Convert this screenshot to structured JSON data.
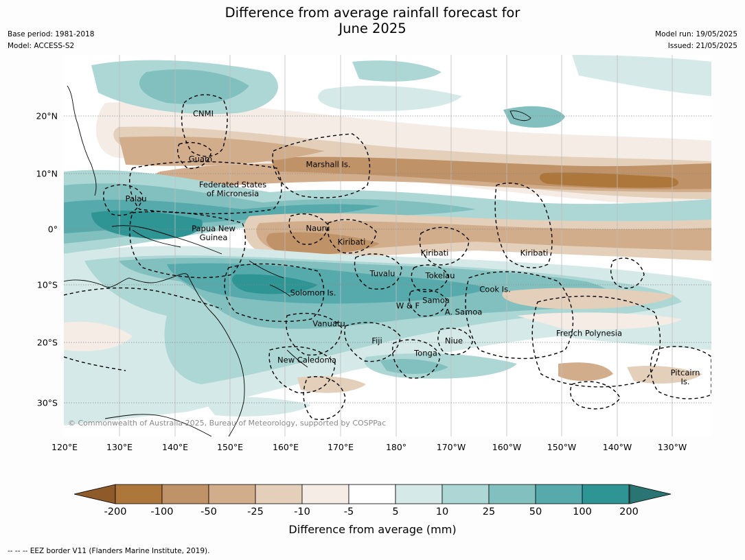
{
  "title_line1": "Difference from average rainfall forecast for",
  "title_line2": "June 2025",
  "meta": {
    "base_period": "Base period: 1981-2018",
    "model": "Model: ACCESS-S2",
    "model_run": "Model run: 19/05/2025",
    "issued": "Issued: 21/05/2025"
  },
  "lat_labels": [
    "20°N",
    "10°N",
    "0°",
    "10°S",
    "20°S",
    "30°S"
  ],
  "lon_labels": [
    "120°E",
    "130°E",
    "140°E",
    "150°E",
    "160°E",
    "170°E",
    "180°",
    "170°W",
    "160°W",
    "150°W",
    "140°W",
    "130°W"
  ],
  "regions": {
    "cnmi": "CNMI",
    "guam": "Guam",
    "marshall": "Marshall Is.",
    "fsm_line1": "Federated States",
    "fsm_line2": "of Micronesia",
    "palau": "Palau",
    "png_line1": "Papua New",
    "png_line2": "Guinea",
    "nauru": "Nauru",
    "kiribati_west": "Kiribati",
    "kiribati_central": "Kiribati",
    "kiribati_east": "Kiribati",
    "tuvalu": "Tuvalu",
    "tokelau": "Tokelau",
    "cook": "Cook Is.",
    "solomon": "Solomon Is.",
    "samoa": "Samoa",
    "wf": "W & F",
    "am_samoa": "A. Samoa",
    "vanuatu": "Vanuatu",
    "fiji": "Fiji",
    "niue": "Niue",
    "tonga": "Tonga",
    "french_polynesia": "French Polynesia",
    "new_caledonia": "New Caledonia",
    "pitcairn_line1": "Pitcairn",
    "pitcairn_line2": "Is."
  },
  "copyright": "© Commonwealth of Australia 2025, Bureau of Meteorology, supported by COSPPac",
  "colorbar": {
    "ticks": [
      "-200",
      "-100",
      "-50",
      "-25",
      "-10",
      "-5",
      "5",
      "10",
      "25",
      "50",
      "100",
      "200"
    ],
    "colors": {
      "below_min": "#8e5a2a",
      "bins": [
        "#ad773c",
        "#c09267",
        "#d2ad8c",
        "#e3cfba",
        "#f4ece5",
        "#ffffff",
        "#d5eae8",
        "#add7d5",
        "#82c0c0",
        "#56aaab",
        "#2f9494"
      ],
      "above_max": "#2a7474"
    },
    "label": "Difference from average (mm)"
  },
  "footnote": "--  --  -- EEZ border V11 (Flanders Marine Institute, 2019)."
}
